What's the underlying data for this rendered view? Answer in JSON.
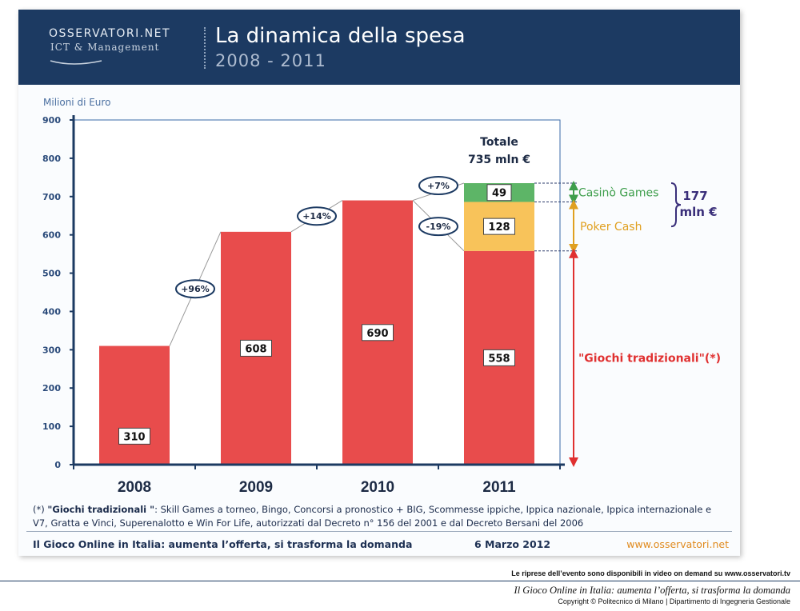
{
  "header": {
    "logo_main": "OSSERVATORI.NET",
    "logo_sub": "ICT & Management",
    "title": "La dinamica della spesa",
    "subtitle": "2008 - 2011"
  },
  "chart_data": {
    "type": "bar",
    "stacked": true,
    "ylabel": "Milioni di Euro",
    "ylim": [
      0,
      900
    ],
    "yticks": [
      0,
      100,
      200,
      300,
      400,
      500,
      600,
      700,
      800,
      900
    ],
    "categories": [
      "2008",
      "2009",
      "2010",
      "2011"
    ],
    "series": [
      {
        "name": "\"Giochi tradizionali\"(*)",
        "color": "#e84c4c",
        "values": [
          310,
          608,
          690,
          558
        ]
      },
      {
        "name": "Poker Cash",
        "color": "#f8c35a",
        "values": [
          0,
          0,
          0,
          128
        ]
      },
      {
        "name": "Casinò Games",
        "color": "#5db567",
        "values": [
          0,
          0,
          0,
          49
        ]
      }
    ],
    "growth_labels": [
      {
        "between": [
          "2008",
          "2009"
        ],
        "text": "+96%"
      },
      {
        "between": [
          "2009",
          "2010"
        ],
        "text": "+14%"
      },
      {
        "between": [
          "2010",
          "2011"
        ],
        "text": "+7%",
        "ref": "total"
      },
      {
        "between": [
          "2010",
          "2011"
        ],
        "text": "-19%",
        "ref": "traditional"
      }
    ],
    "total_label_line1": "Totale",
    "total_label_line2": "735 mln €",
    "bracket_line1": "177",
    "bracket_line2": "mln €",
    "legend_casino": "Casinò Games",
    "legend_poker": "Poker Cash",
    "legend_traditional": "\"Giochi tradizionali\"(*)",
    "colors": {
      "casino_text": "#3e9e4c",
      "poker_text": "#e0a020",
      "traditional_text": "#e03030",
      "axis": "#1c3a62",
      "bracket": "#3a2f7a"
    }
  },
  "footnote": {
    "marker": "(*) ",
    "term": "\"Giochi tradizionali \"",
    "text": ": Skill Games a torneo, Bingo, Concorsi a pronostico + BIG, Scommesse ippiche,  Ippica nazionale, Ippica internazionale  e V7, Gratta e Vinci, Superenalotto e Win For Life, autorizzati dal Decreto n° 156 del 2001 e dal Decreto Bersani del 2006"
  },
  "footer": {
    "left": "Il Gioco Online in Italia: aumenta l’offerta, si trasforma la domanda",
    "date": "6 Marzo 2012",
    "url": "www.osservatori.net"
  },
  "page_footer": {
    "video_note": "Le riprese dell’evento sono disponibili in video on demand su www.osservatori.tv",
    "title": "Il Gioco Online in Italia: aumenta l’offerta, si trasforma la domanda",
    "copyright": "Copyright © Politecnico di Milano | Dipartimento di Ingegneria Gestionale"
  }
}
